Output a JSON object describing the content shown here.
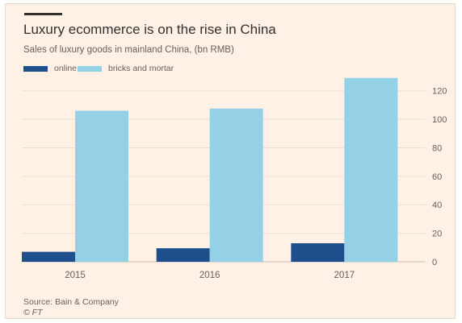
{
  "title": "Luxury ecommerce is on the rise in China",
  "subtitle": "Sales of luxury goods in mainland China, (bn RMB)",
  "source": "Source: Bain & Company",
  "credit": "© FT",
  "colors": {
    "background": "#fff1e5",
    "online": "#1f4e8c",
    "bricks_and_mortar": "#94d0e6",
    "grid": "#eadfd3",
    "text": "#66605c"
  },
  "chart_data": {
    "type": "bar",
    "title": "Luxury ecommerce is on the rise in China",
    "subtitle": "Sales of luxury goods in mainland China, (bn RMB)",
    "categories": [
      "2015",
      "2016",
      "2017"
    ],
    "series": [
      {
        "name": "online",
        "color": "#1f4e8c",
        "values": [
          7,
          9.5,
          13
        ]
      },
      {
        "name": "bricks and mortar",
        "color": "#94d0e6",
        "values": [
          106,
          107.5,
          129
        ]
      }
    ],
    "ylim": [
      0,
      130
    ],
    "yticks": [
      0,
      20,
      40,
      60,
      80,
      100,
      120
    ],
    "y_axis_side": "right",
    "grid": true,
    "legend_position": "top-left"
  }
}
